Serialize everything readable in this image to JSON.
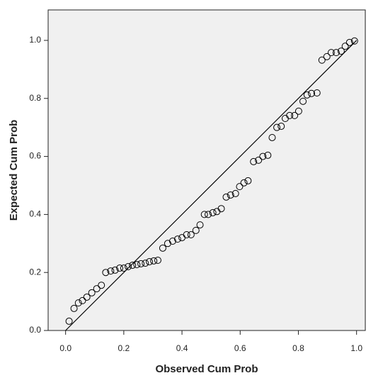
{
  "chart_data": {
    "type": "scatter",
    "x_label": "Observed Cum Prob",
    "y_label": "Expected Cum Prob",
    "x": [
      0.012,
      0.029,
      0.044,
      0.058,
      0.073,
      0.09,
      0.107,
      0.123,
      0.138,
      0.155,
      0.17,
      0.186,
      0.2,
      0.215,
      0.23,
      0.245,
      0.259,
      0.274,
      0.288,
      0.303,
      0.317,
      0.334,
      0.351,
      0.368,
      0.385,
      0.4,
      0.416,
      0.431,
      0.448,
      0.462,
      0.477,
      0.49,
      0.506,
      0.52,
      0.535,
      0.552,
      0.567,
      0.584,
      0.598,
      0.613,
      0.627,
      0.646,
      0.663,
      0.678,
      0.695,
      0.71,
      0.726,
      0.741,
      0.755,
      0.77,
      0.787,
      0.801,
      0.816,
      0.83,
      0.845,
      0.864,
      0.881,
      0.898,
      0.913,
      0.93,
      0.947,
      0.961,
      0.976,
      0.993
    ],
    "values": [
      0.032,
      0.076,
      0.095,
      0.103,
      0.115,
      0.13,
      0.144,
      0.156,
      0.2,
      0.205,
      0.208,
      0.215,
      0.215,
      0.22,
      0.225,
      0.227,
      0.23,
      0.232,
      0.237,
      0.24,
      0.242,
      0.284,
      0.3,
      0.308,
      0.315,
      0.32,
      0.33,
      0.33,
      0.345,
      0.364,
      0.4,
      0.4,
      0.406,
      0.41,
      0.42,
      0.46,
      0.467,
      0.472,
      0.496,
      0.509,
      0.516,
      0.582,
      0.587,
      0.6,
      0.604,
      0.665,
      0.7,
      0.704,
      0.731,
      0.741,
      0.741,
      0.756,
      0.79,
      0.812,
      0.817,
      0.819,
      0.932,
      0.944,
      0.958,
      0.958,
      0.963,
      0.98,
      0.993,
      0.998
    ],
    "marker_color": "#000000",
    "background": "#f0f0f0",
    "reference_line": [
      [
        0,
        0
      ],
      [
        1,
        1
      ]
    ],
    "xlim": [
      -0.06,
      1.03
    ],
    "ylim": [
      0,
      1.105
    ],
    "xticks": [
      {
        "value": 0,
        "label": "0.0"
      },
      0.2,
      0.4,
      0.6,
      0.8,
      {
        "value": 1,
        "label": "1.0"
      }
    ],
    "yticks": [
      {
        "value": 0,
        "label": "0.0"
      },
      0.2,
      0.4,
      0.6,
      0.8,
      {
        "value": 1,
        "label": "1.0"
      }
    ]
  }
}
